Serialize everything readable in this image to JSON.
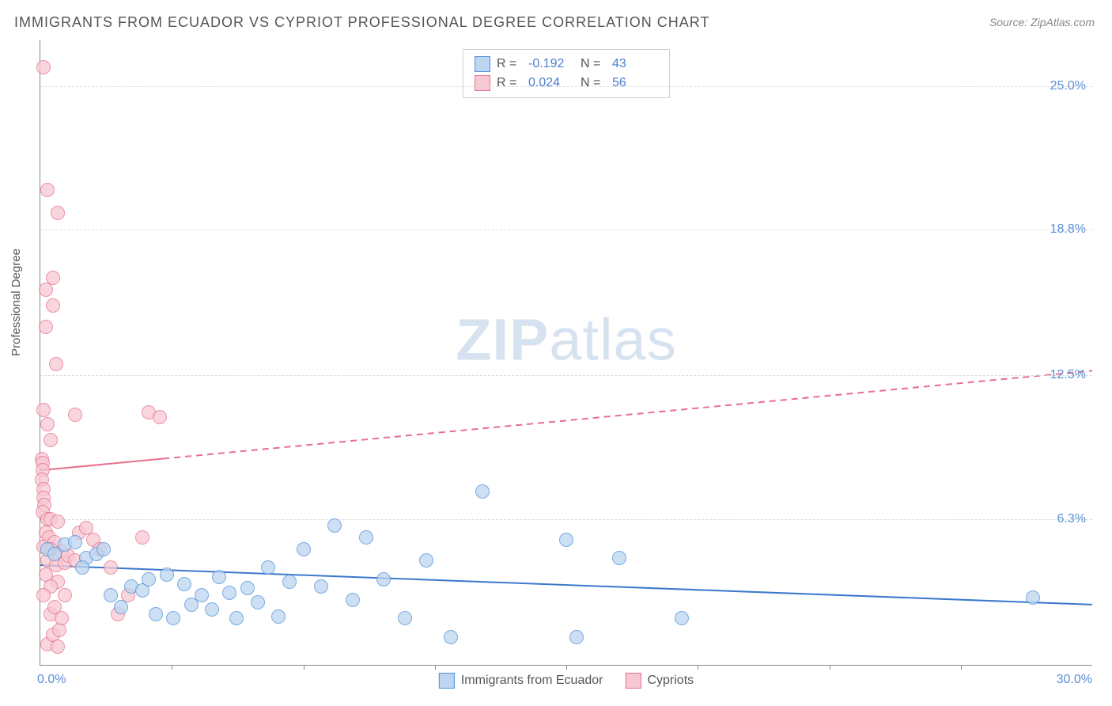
{
  "title": "IMMIGRANTS FROM ECUADOR VS CYPRIOT PROFESSIONAL DEGREE CORRELATION CHART",
  "source_prefix": "Source: ",
  "source": "ZipAtlas.com",
  "ylabel": "Professional Degree",
  "watermark_bold": "ZIP",
  "watermark_rest": "atlas",
  "chart": {
    "type": "scatter",
    "xlim": [
      0,
      30
    ],
    "ylim": [
      0,
      27
    ],
    "background_color": "#ffffff",
    "grid_color": "#dcdcdc",
    "axis_color": "#888888",
    "label_color": "#5a8fd6",
    "yticks": [
      {
        "value": 6.3,
        "label": "6.3%"
      },
      {
        "value": 12.5,
        "label": "12.5%"
      },
      {
        "value": 18.8,
        "label": "18.8%"
      },
      {
        "value": 25.0,
        "label": "25.0%"
      }
    ],
    "xticks_minor": [
      3.75,
      7.5,
      11.25,
      15,
      18.75,
      22.5,
      26.25
    ],
    "x_min_label": "0.0%",
    "x_max_label": "30.0%",
    "marker_radius": 9,
    "marker_border_width": 1.5,
    "trend_line_width": 2
  },
  "series": [
    {
      "id": "ecuador",
      "label": "Immigrants from Ecuador",
      "fill": "#bcd5f0",
      "stroke": "#4f8fd9",
      "line_color": "#3b78cc",
      "line_dash": "none",
      "R": "-0.192",
      "N": "43",
      "trend": {
        "x1": 0,
        "y1": 4.3,
        "x2": 30,
        "y2": 2.6
      },
      "points": [
        [
          0.2,
          5.0
        ],
        [
          0.4,
          4.8
        ],
        [
          0.7,
          5.2
        ],
        [
          1.0,
          5.3
        ],
        [
          1.3,
          4.6
        ],
        [
          1.6,
          4.8
        ],
        [
          1.2,
          4.2
        ],
        [
          1.8,
          5.0
        ],
        [
          2.0,
          3.0
        ],
        [
          2.3,
          2.5
        ],
        [
          2.6,
          3.4
        ],
        [
          2.9,
          3.2
        ],
        [
          3.1,
          3.7
        ],
        [
          3.3,
          2.2
        ],
        [
          3.6,
          3.9
        ],
        [
          3.8,
          2.0
        ],
        [
          4.1,
          3.5
        ],
        [
          4.3,
          2.6
        ],
        [
          4.6,
          3.0
        ],
        [
          4.9,
          2.4
        ],
        [
          5.1,
          3.8
        ],
        [
          5.4,
          3.1
        ],
        [
          5.6,
          2.0
        ],
        [
          5.9,
          3.3
        ],
        [
          6.2,
          2.7
        ],
        [
          6.5,
          4.2
        ],
        [
          6.8,
          2.1
        ],
        [
          7.1,
          3.6
        ],
        [
          7.5,
          5.0
        ],
        [
          8.0,
          3.4
        ],
        [
          8.4,
          6.0
        ],
        [
          8.9,
          2.8
        ],
        [
          9.3,
          5.5
        ],
        [
          9.8,
          3.7
        ],
        [
          10.4,
          2.0
        ],
        [
          11.0,
          4.5
        ],
        [
          11.7,
          1.2
        ],
        [
          12.6,
          7.5
        ],
        [
          15.0,
          5.4
        ],
        [
          15.3,
          1.2
        ],
        [
          16.5,
          4.6
        ],
        [
          18.3,
          2.0
        ],
        [
          28.3,
          2.9
        ]
      ]
    },
    {
      "id": "cypriots",
      "label": "Cypriots",
      "fill": "#f7c8d2",
      "stroke": "#e76f8c",
      "line_color": "#e76f8c",
      "line_dash": "8 6",
      "R": "0.024",
      "N": "56",
      "trend_solid_until": 3.5,
      "trend": {
        "x1": 0,
        "y1": 8.4,
        "x2": 30,
        "y2": 12.7
      },
      "points": [
        [
          0.1,
          25.8
        ],
        [
          0.2,
          20.5
        ],
        [
          0.5,
          19.5
        ],
        [
          0.35,
          16.7
        ],
        [
          0.15,
          16.2
        ],
        [
          0.35,
          15.5
        ],
        [
          0.15,
          14.6
        ],
        [
          0.45,
          13.0
        ],
        [
          0.1,
          11.0
        ],
        [
          1.0,
          10.8
        ],
        [
          0.2,
          10.4
        ],
        [
          0.3,
          9.7
        ],
        [
          0.05,
          8.9
        ],
        [
          0.06,
          8.7
        ],
        [
          0.07,
          8.4
        ],
        [
          0.05,
          8.0
        ],
        [
          0.08,
          7.6
        ],
        [
          0.1,
          7.2
        ],
        [
          0.12,
          6.9
        ],
        [
          0.06,
          6.6
        ],
        [
          0.2,
          6.3
        ],
        [
          0.3,
          6.3
        ],
        [
          0.5,
          6.2
        ],
        [
          0.15,
          5.7
        ],
        [
          0.25,
          5.5
        ],
        [
          0.4,
          5.3
        ],
        [
          0.1,
          5.1
        ],
        [
          0.3,
          5.0
        ],
        [
          0.6,
          4.9
        ],
        [
          0.2,
          4.5
        ],
        [
          0.45,
          4.3
        ],
        [
          0.7,
          4.4
        ],
        [
          0.15,
          3.9
        ],
        [
          0.5,
          3.6
        ],
        [
          0.3,
          3.4
        ],
        [
          0.1,
          3.0
        ],
        [
          0.2,
          0.9
        ],
        [
          0.35,
          1.3
        ],
        [
          0.5,
          0.8
        ],
        [
          0.3,
          2.2
        ],
        [
          0.7,
          3.0
        ],
        [
          0.55,
          1.5
        ],
        [
          0.4,
          2.5
        ],
        [
          0.6,
          2.0
        ],
        [
          0.8,
          4.7
        ],
        [
          1.0,
          4.5
        ],
        [
          1.1,
          5.7
        ],
        [
          1.3,
          5.9
        ],
        [
          1.5,
          5.4
        ],
        [
          1.7,
          5.0
        ],
        [
          2.0,
          4.2
        ],
        [
          2.2,
          2.2
        ],
        [
          2.5,
          3.0
        ],
        [
          2.9,
          5.5
        ],
        [
          3.1,
          10.9
        ],
        [
          3.4,
          10.7
        ]
      ]
    }
  ],
  "legend_top_labels": {
    "R": "R =",
    "N": "N ="
  },
  "colors": {
    "title": "#555555",
    "source": "#888888"
  }
}
